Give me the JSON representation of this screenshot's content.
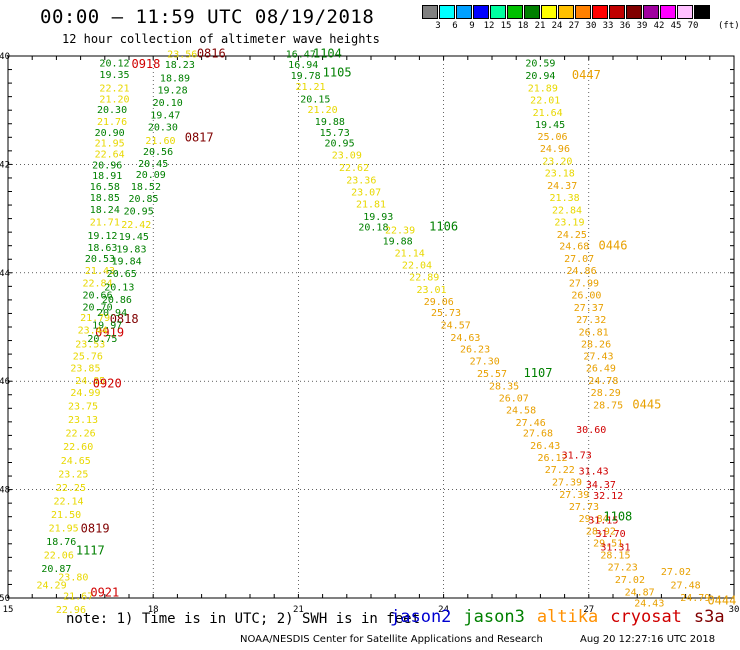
{
  "header": {
    "title": "00:00 – 11:59 UTC 08/19/2018",
    "subtitle": "12 hour collection of altimeter wave heights"
  },
  "scale": {
    "colors": [
      "#808080",
      "#00ffff",
      "#00a0ff",
      "#0000ff",
      "#00ffa0",
      "#00c000",
      "#008000",
      "#ffff00",
      "#ffc000",
      "#ff8000",
      "#ff0000",
      "#c00000",
      "#800000",
      "#a000a0",
      "#ff00ff",
      "#ffc0ff",
      "#000000"
    ],
    "labels": [
      "3",
      "6",
      "9",
      "12",
      "15",
      "18",
      "21",
      "24",
      "27",
      "30",
      "33",
      "36",
      "39",
      "42",
      "45",
      "70"
    ],
    "unit": "(ft)"
  },
  "note": "note:  1) Time is in UTC; 2) SWH is in feet",
  "satellites": [
    {
      "name": "jason2",
      "color": "#0000d0"
    },
    {
      "name": "jason3",
      "color": "#008000"
    },
    {
      "name": "altika",
      "color": "#ff9000"
    },
    {
      "name": "cryosat",
      "color": "#d00000"
    },
    {
      "name": "s3a",
      "color": "#800000"
    }
  ],
  "footer": {
    "credit": "NOAA/NESDIS Center for Satellite Applications and Research",
    "timestamp": "Aug 20 12:27:16 UTC 2018"
  },
  "chart_data": {
    "type": "scatter",
    "title": "00:00 – 11:59 UTC 08/19/2018",
    "xlim": [
      15,
      30
    ],
    "ylim": [
      -50,
      -40
    ],
    "xticks": [
      "15",
      "18",
      "21",
      "24",
      "27",
      "30"
    ],
    "yticks": [
      "-40",
      "-42",
      "-44",
      "-46",
      "-48",
      "-50"
    ],
    "grid": true,
    "points": [
      {
        "x": 17.85,
        "y": -40.15,
        "v": "0918",
        "c": "#d00000"
      },
      {
        "x": 17.2,
        "y": -40.12,
        "v": "20.12",
        "c": "#008000"
      },
      {
        "x": 17.2,
        "y": -40.33,
        "v": "19.35",
        "c": "#008000"
      },
      {
        "x": 17.2,
        "y": -40.58,
        "v": "22.21",
        "c": "#e8d800"
      },
      {
        "x": 17.2,
        "y": -40.78,
        "v": "21.20",
        "c": "#e8d800"
      },
      {
        "x": 17.15,
        "y": -40.98,
        "v": "20.30",
        "c": "#008000"
      },
      {
        "x": 17.15,
        "y": -41.2,
        "v": "21.76",
        "c": "#e8d800"
      },
      {
        "x": 17.1,
        "y": -41.4,
        "v": "20.90",
        "c": "#008000"
      },
      {
        "x": 17.1,
        "y": -41.6,
        "v": "21.95",
        "c": "#e8d800"
      },
      {
        "x": 17.1,
        "y": -41.8,
        "v": "22.64",
        "c": "#e8d800"
      },
      {
        "x": 17.05,
        "y": -42.0,
        "v": "20.96",
        "c": "#008000"
      },
      {
        "x": 17.05,
        "y": -42.2,
        "v": "18.91",
        "c": "#008000"
      },
      {
        "x": 17.0,
        "y": -42.4,
        "v": "16.58",
        "c": "#008000"
      },
      {
        "x": 17.0,
        "y": -42.6,
        "v": "18.85",
        "c": "#008000"
      },
      {
        "x": 17.0,
        "y": -42.82,
        "v": "18.24",
        "c": "#008000"
      },
      {
        "x": 17.0,
        "y": -43.05,
        "v": "21.71",
        "c": "#e8d800"
      },
      {
        "x": 16.95,
        "y": -43.3,
        "v": "19.12",
        "c": "#008000"
      },
      {
        "x": 16.95,
        "y": -43.52,
        "v": "18.63",
        "c": "#008000"
      },
      {
        "x": 16.9,
        "y": -43.73,
        "v": "20.53",
        "c": "#008000"
      },
      {
        "x": 16.9,
        "y": -43.95,
        "v": "21.43",
        "c": "#e8d800"
      },
      {
        "x": 16.85,
        "y": -44.18,
        "v": "22.84",
        "c": "#e8d800"
      },
      {
        "x": 16.85,
        "y": -44.4,
        "v": "20.66",
        "c": "#008000"
      },
      {
        "x": 16.85,
        "y": -44.62,
        "v": "20.70",
        "c": "#008000"
      },
      {
        "x": 16.8,
        "y": -44.82,
        "v": "21.79",
        "c": "#e8d800"
      },
      {
        "x": 17.4,
        "y": -44.85,
        "v": "0818",
        "c": "#800000"
      },
      {
        "x": 17.1,
        "y": -45.1,
        "v": "0919",
        "c": "#d00000"
      },
      {
        "x": 16.75,
        "y": -45.05,
        "v": "23.44",
        "c": "#e8d800"
      },
      {
        "x": 16.7,
        "y": -45.3,
        "v": "23.53",
        "c": "#e8d800"
      },
      {
        "x": 16.65,
        "y": -45.53,
        "v": "25.76",
        "c": "#e8d800"
      },
      {
        "x": 16.6,
        "y": -45.75,
        "v": "23.85",
        "c": "#e8d800"
      },
      {
        "x": 16.7,
        "y": -45.98,
        "v": "24.85",
        "c": "#e8d800"
      },
      {
        "x": 16.6,
        "y": -46.2,
        "v": "24.99",
        "c": "#e8d800"
      },
      {
        "x": 17.05,
        "y": -46.04,
        "v": "0920",
        "c": "#d00000"
      },
      {
        "x": 16.55,
        "y": -46.45,
        "v": "23.75",
        "c": "#e8d800"
      },
      {
        "x": 16.55,
        "y": -46.7,
        "v": "23.13",
        "c": "#e8d800"
      },
      {
        "x": 16.5,
        "y": -46.95,
        "v": "22.26",
        "c": "#e8d800"
      },
      {
        "x": 16.45,
        "y": -47.2,
        "v": "22.60",
        "c": "#e8d800"
      },
      {
        "x": 16.4,
        "y": -47.45,
        "v": "24.65",
        "c": "#e8d800"
      },
      {
        "x": 16.35,
        "y": -47.7,
        "v": "23.25",
        "c": "#e8d800"
      },
      {
        "x": 16.3,
        "y": -47.95,
        "v": "22.25",
        "c": "#e8d800"
      },
      {
        "x": 16.25,
        "y": -48.2,
        "v": "22.14",
        "c": "#e8d800"
      },
      {
        "x": 16.2,
        "y": -48.45,
        "v": "21.50",
        "c": "#e8d800"
      },
      {
        "x": 16.15,
        "y": -48.7,
        "v": "21.95",
        "c": "#e8d800"
      },
      {
        "x": 16.8,
        "y": -48.72,
        "v": "0819",
        "c": "#800000"
      },
      {
        "x": 16.1,
        "y": -48.95,
        "v": "18.76",
        "c": "#008000"
      },
      {
        "x": 16.05,
        "y": -49.2,
        "v": "22.06",
        "c": "#e8d800"
      },
      {
        "x": 16.7,
        "y": -49.12,
        "v": "1117",
        "c": "#008000"
      },
      {
        "x": 16.0,
        "y": -49.45,
        "v": "20.87",
        "c": "#008000"
      },
      {
        "x": 16.35,
        "y": -49.6,
        "v": "23.80",
        "c": "#e8d800"
      },
      {
        "x": 15.9,
        "y": -49.75,
        "v": "24.29",
        "c": "#e8d800"
      },
      {
        "x": 16.45,
        "y": -49.95,
        "v": "21.67",
        "c": "#e8d800"
      },
      {
        "x": 17.0,
        "y": -49.9,
        "v": "0921",
        "c": "#d00000"
      },
      {
        "x": 16.3,
        "y": -50.2,
        "v": "22.96",
        "c": "#e8d800"
      },
      {
        "x": 19.2,
        "y": -39.95,
        "v": "0816",
        "c": "#800000"
      },
      {
        "x": 18.6,
        "y": -39.95,
        "v": "23.56",
        "c": "#e8d800"
      },
      {
        "x": 18.55,
        "y": -40.15,
        "v": "18.23",
        "c": "#008000"
      },
      {
        "x": 18.45,
        "y": -40.4,
        "v": "18.89",
        "c": "#008000"
      },
      {
        "x": 18.4,
        "y": -40.62,
        "v": "19.28",
        "c": "#008000"
      },
      {
        "x": 18.3,
        "y": -40.85,
        "v": "20.10",
        "c": "#008000"
      },
      {
        "x": 18.25,
        "y": -41.08,
        "v": "19.47",
        "c": "#008000"
      },
      {
        "x": 18.2,
        "y": -41.3,
        "v": "20.30",
        "c": "#008000"
      },
      {
        "x": 18.95,
        "y": -41.5,
        "v": "0817",
        "c": "#800000"
      },
      {
        "x": 18.15,
        "y": -41.55,
        "v": "21.60",
        "c": "#e8d800"
      },
      {
        "x": 18.1,
        "y": -41.75,
        "v": "20.56",
        "c": "#008000"
      },
      {
        "x": 18.0,
        "y": -41.97,
        "v": "20.45",
        "c": "#008000"
      },
      {
        "x": 17.95,
        "y": -42.18,
        "v": "20.09",
        "c": "#008000"
      },
      {
        "x": 17.85,
        "y": -42.4,
        "v": "18.52",
        "c": "#008000"
      },
      {
        "x": 17.8,
        "y": -42.62,
        "v": "20.85",
        "c": "#008000"
      },
      {
        "x": 17.7,
        "y": -42.85,
        "v": "20.95",
        "c": "#008000"
      },
      {
        "x": 17.65,
        "y": -43.1,
        "v": "22.42",
        "c": "#e8d800"
      },
      {
        "x": 17.6,
        "y": -43.32,
        "v": "19.45",
        "c": "#008000"
      },
      {
        "x": 17.55,
        "y": -43.55,
        "v": "19.83",
        "c": "#008000"
      },
      {
        "x": 17.45,
        "y": -43.77,
        "v": "19.84",
        "c": "#008000"
      },
      {
        "x": 17.35,
        "y": -44.0,
        "v": "20.65",
        "c": "#008000"
      },
      {
        "x": 17.3,
        "y": -44.25,
        "v": "20.13",
        "c": "#008000"
      },
      {
        "x": 17.25,
        "y": -44.48,
        "v": "20.86",
        "c": "#008000"
      },
      {
        "x": 17.15,
        "y": -44.72,
        "v": "20.94",
        "c": "#008000"
      },
      {
        "x": 17.05,
        "y": -44.95,
        "v": "19.97",
        "c": "#008000"
      },
      {
        "x": 16.95,
        "y": -45.2,
        "v": "20.75",
        "c": "#008000"
      },
      {
        "x": 21.05,
        "y": -39.95,
        "v": "16.47",
        "c": "#008000"
      },
      {
        "x": 21.6,
        "y": -39.95,
        "v": "1104",
        "c": "#008000"
      },
      {
        "x": 21.1,
        "y": -40.15,
        "v": "16.94",
        "c": "#008000"
      },
      {
        "x": 21.15,
        "y": -40.35,
        "v": "19.78",
        "c": "#008000"
      },
      {
        "x": 21.8,
        "y": -40.3,
        "v": "1105",
        "c": "#008000"
      },
      {
        "x": 21.25,
        "y": -40.55,
        "v": "21.21",
        "c": "#e8d800"
      },
      {
        "x": 21.35,
        "y": -40.78,
        "v": "20.15",
        "c": "#008000"
      },
      {
        "x": 21.5,
        "y": -40.98,
        "v": "21.20",
        "c": "#e8d800"
      },
      {
        "x": 21.65,
        "y": -41.2,
        "v": "19.88",
        "c": "#008000"
      },
      {
        "x": 21.75,
        "y": -41.4,
        "v": "15.73",
        "c": "#008000"
      },
      {
        "x": 21.85,
        "y": -41.6,
        "v": "20.95",
        "c": "#008000"
      },
      {
        "x": 22.0,
        "y": -41.82,
        "v": "23.09",
        "c": "#e8d800"
      },
      {
        "x": 22.15,
        "y": -42.05,
        "v": "22.62",
        "c": "#e8d800"
      },
      {
        "x": 22.3,
        "y": -42.28,
        "v": "23.36",
        "c": "#e8d800"
      },
      {
        "x": 22.4,
        "y": -42.5,
        "v": "23.07",
        "c": "#e8d800"
      },
      {
        "x": 22.5,
        "y": -42.72,
        "v": "21.81",
        "c": "#e8d800"
      },
      {
        "x": 22.65,
        "y": -42.95,
        "v": "19.93",
        "c": "#008000"
      },
      {
        "x": 22.55,
        "y": -43.15,
        "v": "20.18",
        "c": "#008000"
      },
      {
        "x": 24.0,
        "y": -43.15,
        "v": "1106",
        "c": "#008000"
      },
      {
        "x": 23.1,
        "y": -43.2,
        "v": "22.39",
        "c": "#e8d800"
      },
      {
        "x": 23.05,
        "y": -43.4,
        "v": "19.88",
        "c": "#008000"
      },
      {
        "x": 23.3,
        "y": -43.63,
        "v": "21.14",
        "c": "#e8d800"
      },
      {
        "x": 23.45,
        "y": -43.85,
        "v": "22.04",
        "c": "#e8d800"
      },
      {
        "x": 23.6,
        "y": -44.07,
        "v": "22.89",
        "c": "#e8d800"
      },
      {
        "x": 23.75,
        "y": -44.3,
        "v": "23.01",
        "c": "#e8d800"
      },
      {
        "x": 23.9,
        "y": -44.52,
        "v": "29.06",
        "c": "#e8a000"
      },
      {
        "x": 24.05,
        "y": -44.72,
        "v": "25.73",
        "c": "#e8a000"
      },
      {
        "x": 24.25,
        "y": -44.95,
        "v": "24.57",
        "c": "#e8a000"
      },
      {
        "x": 24.45,
        "y": -45.18,
        "v": "24.63",
        "c": "#e8a000"
      },
      {
        "x": 24.65,
        "y": -45.4,
        "v": "26.23",
        "c": "#e8a000"
      },
      {
        "x": 24.85,
        "y": -45.62,
        "v": "27.30",
        "c": "#e8a000"
      },
      {
        "x": 25.0,
        "y": -45.85,
        "v": "25.57",
        "c": "#e8a000"
      },
      {
        "x": 25.95,
        "y": -45.85,
        "v": "1107",
        "c": "#008000"
      },
      {
        "x": 25.25,
        "y": -46.08,
        "v": "28.35",
        "c": "#e8a000"
      },
      {
        "x": 25.45,
        "y": -46.3,
        "v": "26.07",
        "c": "#e8a000"
      },
      {
        "x": 25.6,
        "y": -46.52,
        "v": "24.58",
        "c": "#e8a000"
      },
      {
        "x": 25.8,
        "y": -46.75,
        "v": "27.46",
        "c": "#e8a000"
      },
      {
        "x": 25.95,
        "y": -46.95,
        "v": "27.68",
        "c": "#e8a000"
      },
      {
        "x": 26.1,
        "y": -47.18,
        "v": "26.43",
        "c": "#e8a000"
      },
      {
        "x": 26.25,
        "y": -47.4,
        "v": "26.12",
        "c": "#e8a000"
      },
      {
        "x": 26.4,
        "y": -47.62,
        "v": "27.22",
        "c": "#e8a000"
      },
      {
        "x": 26.55,
        "y": -47.85,
        "v": "27.39",
        "c": "#e8a000"
      },
      {
        "x": 26.7,
        "y": -48.08,
        "v": "27.39",
        "c": "#e8a000"
      },
      {
        "x": 26.9,
        "y": -48.3,
        "v": "27.73",
        "c": "#e8a000"
      },
      {
        "x": 27.1,
        "y": -48.52,
        "v": "29.84",
        "c": "#e8a000"
      },
      {
        "x": 27.25,
        "y": -48.75,
        "v": "28.92",
        "c": "#e8a000"
      },
      {
        "x": 27.4,
        "y": -48.98,
        "v": "29.51",
        "c": "#e8a000"
      },
      {
        "x": 27.55,
        "y": -49.2,
        "v": "28.15",
        "c": "#e8a000"
      },
      {
        "x": 27.7,
        "y": -49.42,
        "v": "27.23",
        "c": "#e8a000"
      },
      {
        "x": 27.85,
        "y": -49.65,
        "v": "27.02",
        "c": "#e8a000"
      },
      {
        "x": 28.05,
        "y": -49.88,
        "v": "24.87",
        "c": "#e8a000"
      },
      {
        "x": 28.25,
        "y": -50.08,
        "v": "24.43",
        "c": "#e8a000"
      },
      {
        "x": 28.8,
        "y": -49.5,
        "v": "27.02",
        "c": "#e8a000"
      },
      {
        "x": 29.0,
        "y": -49.75,
        "v": "27.48",
        "c": "#e8a000"
      },
      {
        "x": 29.2,
        "y": -49.98,
        "v": "24.79",
        "c": "#e8a000"
      },
      {
        "x": 29.75,
        "y": -50.05,
        "v": "0444",
        "c": "#e8a000"
      },
      {
        "x": 27.3,
        "y": -48.55,
        "v": "31.15",
        "c": "#d00000"
      },
      {
        "x": 27.6,
        "y": -48.5,
        "v": "1108",
        "c": "#008000"
      },
      {
        "x": 27.45,
        "y": -48.8,
        "v": "31.70",
        "c": "#d00000"
      },
      {
        "x": 27.55,
        "y": -49.05,
        "v": "31.31",
        "c": "#d00000"
      },
      {
        "x": 26.75,
        "y": -47.35,
        "v": "31.73",
        "c": "#d00000"
      },
      {
        "x": 27.25,
        "y": -47.9,
        "v": "34.37",
        "c": "#d00000"
      },
      {
        "x": 27.1,
        "y": -47.65,
        "v": "31.43",
        "c": "#d00000"
      },
      {
        "x": 27.4,
        "y": -48.1,
        "v": "32.12",
        "c": "#d00000"
      },
      {
        "x": 27.05,
        "y": -46.88,
        "v": "30.60",
        "c": "#d00000"
      },
      {
        "x": 26.0,
        "y": -40.12,
        "v": "20.59",
        "c": "#008000"
      },
      {
        "x": 26.0,
        "y": -40.35,
        "v": "20.94",
        "c": "#008000"
      },
      {
        "x": 26.95,
        "y": -40.35,
        "v": "0447",
        "c": "#e8a000"
      },
      {
        "x": 26.05,
        "y": -40.58,
        "v": "21.89",
        "c": "#e8d800"
      },
      {
        "x": 26.1,
        "y": -40.8,
        "v": "22.01",
        "c": "#e8d800"
      },
      {
        "x": 26.15,
        "y": -41.03,
        "v": "21.64",
        "c": "#e8d800"
      },
      {
        "x": 26.2,
        "y": -41.25,
        "v": "19.45",
        "c": "#008000"
      },
      {
        "x": 26.25,
        "y": -41.48,
        "v": "25.06",
        "c": "#e8a000"
      },
      {
        "x": 26.3,
        "y": -41.7,
        "v": "24.96",
        "c": "#e8a000"
      },
      {
        "x": 26.35,
        "y": -41.93,
        "v": "23.20",
        "c": "#e8d800"
      },
      {
        "x": 26.4,
        "y": -42.15,
        "v": "23.18",
        "c": "#e8d800"
      },
      {
        "x": 26.45,
        "y": -42.38,
        "v": "24.37",
        "c": "#e8a000"
      },
      {
        "x": 26.5,
        "y": -42.6,
        "v": "21.38",
        "c": "#e8d800"
      },
      {
        "x": 26.55,
        "y": -42.83,
        "v": "22.84",
        "c": "#e8d800"
      },
      {
        "x": 26.6,
        "y": -43.05,
        "v": "23.19",
        "c": "#e8d800"
      },
      {
        "x": 26.65,
        "y": -43.28,
        "v": "24.25",
        "c": "#e8a000"
      },
      {
        "x": 26.7,
        "y": -43.5,
        "v": "24.68",
        "c": "#e8a000"
      },
      {
        "x": 27.5,
        "y": -43.5,
        "v": "0446",
        "c": "#e8a000"
      },
      {
        "x": 26.8,
        "y": -43.73,
        "v": "27.07",
        "c": "#e8a000"
      },
      {
        "x": 26.85,
        "y": -43.95,
        "v": "24.86",
        "c": "#e8a000"
      },
      {
        "x": 26.9,
        "y": -44.18,
        "v": "27.99",
        "c": "#e8a000"
      },
      {
        "x": 26.95,
        "y": -44.4,
        "v": "26.00",
        "c": "#e8a000"
      },
      {
        "x": 27.0,
        "y": -44.63,
        "v": "27.37",
        "c": "#e8a000"
      },
      {
        "x": 27.05,
        "y": -44.85,
        "v": "27.32",
        "c": "#e8a000"
      },
      {
        "x": 27.1,
        "y": -45.08,
        "v": "26.81",
        "c": "#e8a000"
      },
      {
        "x": 27.15,
        "y": -45.3,
        "v": "28.26",
        "c": "#e8a000"
      },
      {
        "x": 27.2,
        "y": -45.53,
        "v": "27.43",
        "c": "#e8a000"
      },
      {
        "x": 27.25,
        "y": -45.75,
        "v": "26.49",
        "c": "#e8a000"
      },
      {
        "x": 27.3,
        "y": -45.98,
        "v": "24.78",
        "c": "#e8a000"
      },
      {
        "x": 27.35,
        "y": -46.2,
        "v": "28.29",
        "c": "#e8a000"
      },
      {
        "x": 27.4,
        "y": -46.43,
        "v": "28.75",
        "c": "#e8a000"
      },
      {
        "x": 28.2,
        "y": -46.43,
        "v": "0445",
        "c": "#e8a000"
      }
    ]
  }
}
